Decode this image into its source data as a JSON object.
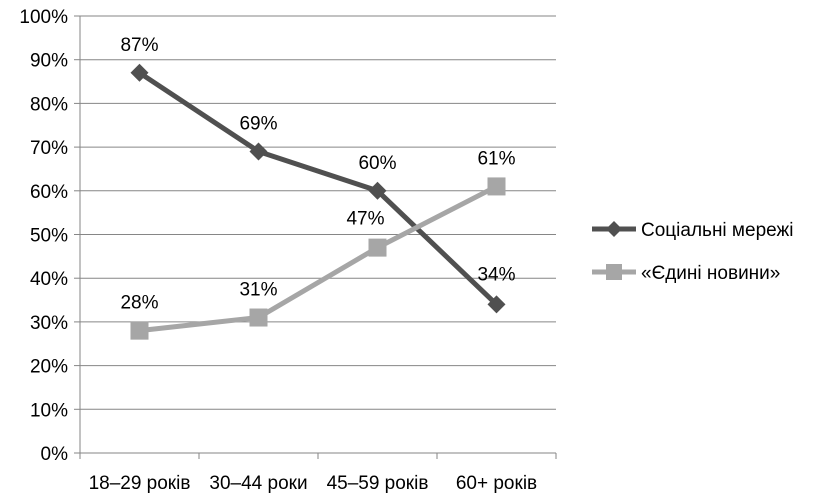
{
  "chart_data": {
    "type": "line",
    "categories": [
      "18–29 років",
      "30–44 роки",
      "45–59 років",
      "60+ років"
    ],
    "series": [
      {
        "name": "Соціальні мережі",
        "values": [
          87,
          69,
          60,
          34
        ],
        "labels": [
          "87%",
          "69%",
          "60%",
          "34%"
        ],
        "color": "#505050",
        "marker": "diamond"
      },
      {
        "name": "«Єдині новини»",
        "values": [
          28,
          31,
          47,
          61
        ],
        "labels": [
          "28%",
          "31%",
          "47%",
          "61%"
        ],
        "color": "#a6a6a6",
        "marker": "square"
      }
    ],
    "ylim": [
      0,
      100
    ],
    "yticks": [
      "0%",
      "10%",
      "20%",
      "30%",
      "40%",
      "50%",
      "60%",
      "70%",
      "80%",
      "90%",
      "100%"
    ],
    "grid": true,
    "legend": "right"
  }
}
